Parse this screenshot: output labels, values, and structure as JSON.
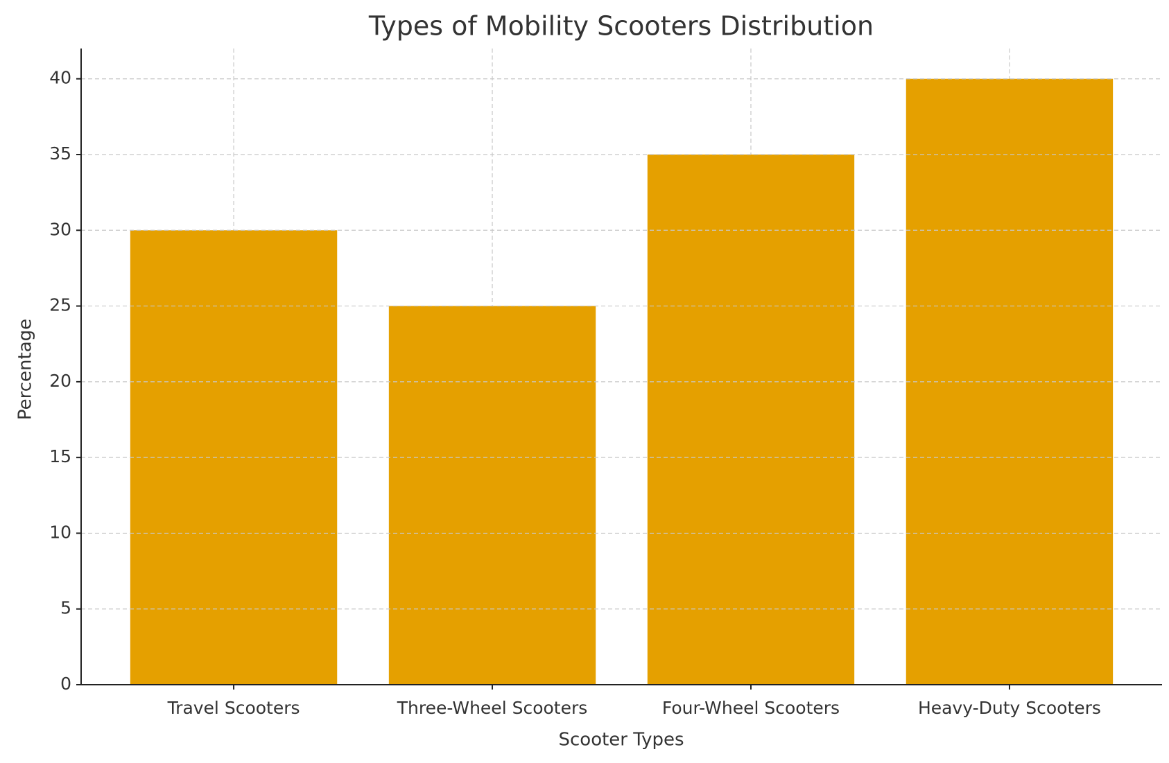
{
  "chart_data": {
    "type": "bar",
    "title": "Types of Mobility Scooters Distribution",
    "x_label": "Scooter Types",
    "y_label": "Percentage",
    "categories": [
      "Travel Scooters",
      "Three-Wheel Scooters",
      "Four-Wheel Scooters",
      "Heavy-Duty Scooters"
    ],
    "values": [
      30,
      25,
      35,
      40
    ],
    "color": "#e5a000",
    "ylim": [
      0,
      42
    ],
    "yticks": [
      0,
      5,
      10,
      15,
      20,
      25,
      30,
      35,
      40
    ],
    "grid": true
  }
}
